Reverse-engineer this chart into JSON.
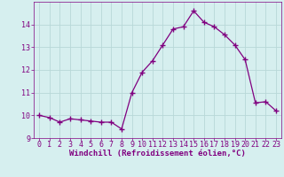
{
  "x": [
    0,
    1,
    2,
    3,
    4,
    5,
    6,
    7,
    8,
    9,
    10,
    11,
    12,
    13,
    14,
    15,
    16,
    17,
    18,
    19,
    20,
    21,
    22,
    23
  ],
  "y": [
    10.0,
    9.9,
    9.7,
    9.85,
    9.8,
    9.75,
    9.7,
    9.7,
    9.4,
    11.0,
    11.9,
    12.4,
    13.1,
    13.8,
    13.9,
    14.6,
    14.1,
    13.9,
    13.55,
    13.1,
    12.45,
    10.55,
    10.6,
    10.2
  ],
  "line_color": "#800080",
  "marker": "+",
  "marker_size": 4.0,
  "linewidth": 0.9,
  "background_color": "#d6efef",
  "grid_color": "#b8d8d8",
  "xlabel": "Windchill (Refroidissement éolien,°C)",
  "xlabel_fontsize": 6.5,
  "tick_fontsize": 6.0,
  "ylim": [
    9.0,
    15.0
  ],
  "xlim": [
    -0.5,
    23.5
  ],
  "yticks": [
    9,
    10,
    11,
    12,
    13,
    14
  ],
  "xticks": [
    0,
    1,
    2,
    3,
    4,
    5,
    6,
    7,
    8,
    9,
    10,
    11,
    12,
    13,
    14,
    15,
    16,
    17,
    18,
    19,
    20,
    21,
    22,
    23
  ],
  "tick_color": "#800080",
  "label_color": "#800080",
  "spine_color": "#800080"
}
